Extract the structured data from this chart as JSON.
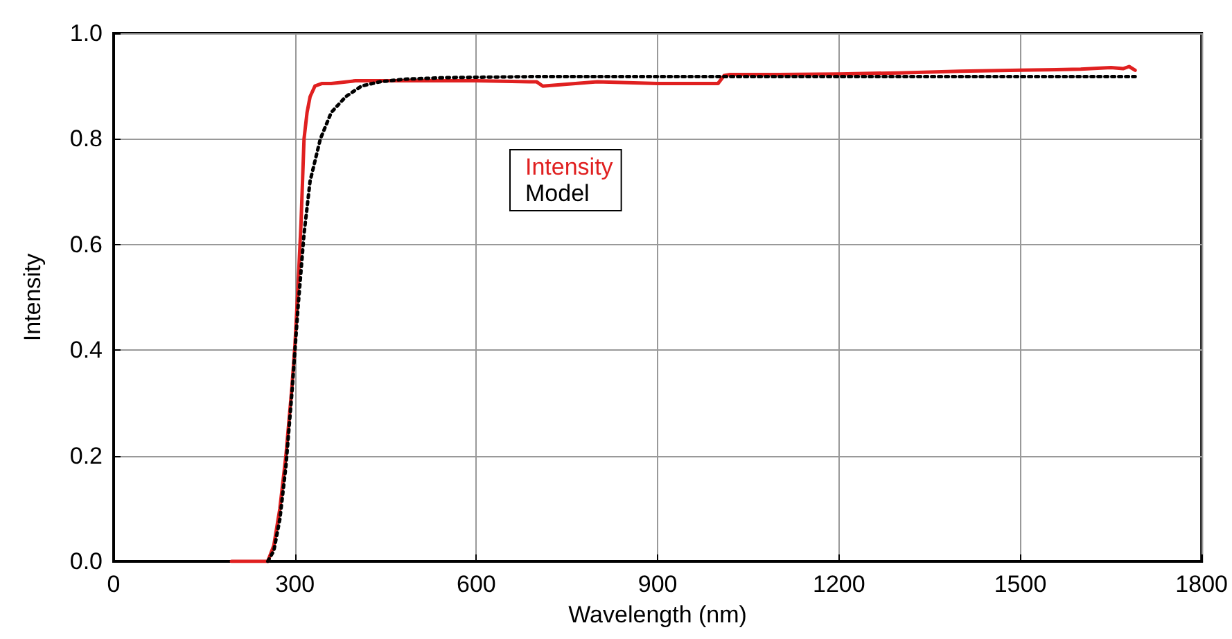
{
  "chart_data": {
    "type": "line",
    "xlabel": "Wavelength (nm)",
    "ylabel": "Intensity",
    "xlim": [
      0,
      1800
    ],
    "xticks": [
      0,
      300,
      600,
      900,
      1200,
      1500,
      1800
    ],
    "ylim": [
      0,
      1.0
    ],
    "yticks": [
      {
        "value": 0,
        "label": "0.0"
      },
      {
        "value": 0.2,
        "label": "0.2"
      },
      {
        "value": 0.4,
        "label": "0.4"
      },
      {
        "value": 0.6,
        "label": "0.6"
      },
      {
        "value": 0.8,
        "label": "0.8"
      },
      {
        "value": 1.0,
        "label": "1.0"
      }
    ],
    "grid": true,
    "legend": "top",
    "marker": "none",
    "series": [
      {
        "name": "Intensity",
        "color": "#e02020",
        "line_style": "solid",
        "x": [
          195,
          230,
          255,
          265,
          275,
          285,
          295,
          300,
          305,
          310,
          315,
          320,
          325,
          333,
          345,
          360,
          400,
          450,
          500,
          600,
          700,
          710,
          800,
          900,
          1000,
          1010,
          1020,
          1100,
          1200,
          1300,
          1400,
          1500,
          1600,
          1650,
          1670,
          1680,
          1690
        ],
        "values": [
          0,
          0,
          0,
          0.03,
          0.1,
          0.2,
          0.33,
          0.41,
          0.52,
          0.64,
          0.8,
          0.85,
          0.88,
          0.9,
          0.905,
          0.905,
          0.91,
          0.91,
          0.91,
          0.91,
          0.908,
          0.9,
          0.908,
          0.905,
          0.905,
          0.92,
          0.922,
          0.922,
          0.923,
          0.925,
          0.928,
          0.93,
          0.932,
          0.935,
          0.933,
          0.937,
          0.93
        ]
      },
      {
        "name": "Model",
        "color": "#000000",
        "line_style": "dotted",
        "x": [
          255,
          265,
          275,
          285,
          295,
          300,
          305,
          315,
          325,
          342,
          360,
          384,
          410,
          440,
          480,
          550,
          700,
          900,
          1200,
          1500,
          1690
        ],
        "values": [
          0,
          0.02,
          0.08,
          0.18,
          0.32,
          0.4,
          0.48,
          0.62,
          0.72,
          0.8,
          0.85,
          0.88,
          0.9,
          0.908,
          0.913,
          0.916,
          0.918,
          0.918,
          0.918,
          0.918,
          0.918
        ]
      }
    ]
  }
}
